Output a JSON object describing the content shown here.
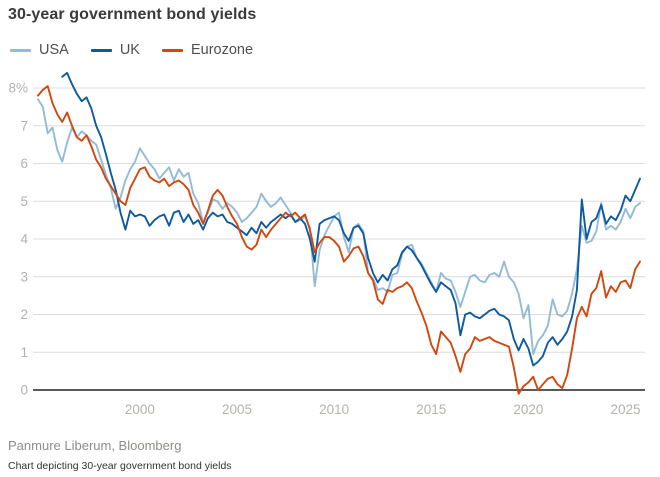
{
  "header": {
    "title": "30-year government bond yields"
  },
  "footer": {
    "source": "Panmure Liberum, Bloomberg",
    "caption": "Chart depicting 30-year government bond yields"
  },
  "colors": {
    "grid": "#dcdcdc",
    "zero_line": "#222222",
    "tick_label": "#b5b2ae"
  },
  "chart_data": {
    "type": "line",
    "title": "30-year government bond yields",
    "xlabel": "",
    "ylabel": "",
    "grid": "horizontal",
    "legend_position": "top-left",
    "x_axis": {
      "range": [
        1994.7,
        2025.8
      ],
      "ticks": [
        2000,
        2005,
        2010,
        2015,
        2020,
        2025
      ]
    },
    "y_axis": {
      "range": [
        -0.3,
        8.6
      ],
      "ticks": [
        0,
        1,
        2,
        3,
        4,
        5,
        6,
        7,
        8
      ],
      "tick_labels": [
        "0",
        "1",
        "2",
        "3",
        "4",
        "5",
        "6",
        "7",
        "8%"
      ],
      "unit": "%"
    },
    "series": [
      {
        "name": "USA",
        "color": "#93bad8",
        "start": 1994.75,
        "step": 0.25,
        "values": [
          7.7,
          7.5,
          6.8,
          6.95,
          6.35,
          6.05,
          6.55,
          6.95,
          6.7,
          6.85,
          6.75,
          6.6,
          6.5,
          6.1,
          5.7,
          5.35,
          4.8,
          5.1,
          5.55,
          5.85,
          6.05,
          6.4,
          6.2,
          6.0,
          5.85,
          5.6,
          5.75,
          5.9,
          5.55,
          5.85,
          5.65,
          5.75,
          5.2,
          4.95,
          4.45,
          4.7,
          5.05,
          5.0,
          4.8,
          4.95,
          4.85,
          4.7,
          4.45,
          4.55,
          4.7,
          4.85,
          5.2,
          5.0,
          4.85,
          4.95,
          5.1,
          4.9,
          4.7,
          4.45,
          4.5,
          4.6,
          4.3,
          2.75,
          3.7,
          4.1,
          4.35,
          4.6,
          4.7,
          4.05,
          3.65,
          4.3,
          4.4,
          4.2,
          3.1,
          2.95,
          2.65,
          2.7,
          2.6,
          3.05,
          3.1,
          3.6,
          3.8,
          3.85,
          3.5,
          3.35,
          3.1,
          2.85,
          2.6,
          3.1,
          2.95,
          2.9,
          2.6,
          2.2,
          2.6,
          3.0,
          3.05,
          2.9,
          2.85,
          3.05,
          3.1,
          3.0,
          3.4,
          3.0,
          2.85,
          2.55,
          1.9,
          2.25,
          0.95,
          1.3,
          1.45,
          1.7,
          2.4,
          2.0,
          1.95,
          2.1,
          2.55,
          3.2,
          4.35,
          3.9,
          3.95,
          4.2,
          4.95,
          4.25,
          4.35,
          4.25,
          4.45,
          4.8,
          4.55,
          4.85,
          4.95
        ]
      },
      {
        "name": "UK",
        "color": "#0f5a9e",
        "start": 1996.0,
        "step": 0.25,
        "values": [
          8.3,
          8.4,
          8.1,
          7.85,
          7.65,
          7.75,
          7.45,
          7.0,
          6.7,
          6.25,
          5.75,
          5.3,
          4.7,
          4.25,
          4.75,
          4.6,
          4.65,
          4.6,
          4.35,
          4.5,
          4.6,
          4.65,
          4.35,
          4.7,
          4.75,
          4.45,
          4.65,
          4.4,
          4.5,
          4.25,
          4.55,
          4.7,
          4.6,
          4.65,
          4.45,
          4.4,
          4.3,
          4.2,
          4.1,
          4.3,
          4.15,
          4.45,
          4.3,
          4.45,
          4.55,
          4.65,
          4.55,
          4.65,
          4.45,
          4.55,
          4.4,
          4.0,
          3.4,
          4.4,
          4.5,
          4.55,
          4.6,
          4.5,
          4.15,
          3.95,
          4.3,
          4.35,
          4.15,
          3.5,
          3.1,
          2.85,
          3.05,
          2.9,
          3.2,
          3.3,
          3.65,
          3.8,
          3.7,
          3.5,
          3.3,
          3.05,
          2.8,
          2.6,
          2.85,
          2.75,
          2.65,
          2.3,
          1.45,
          2.0,
          2.05,
          1.95,
          1.9,
          2.0,
          2.1,
          2.15,
          2.0,
          1.95,
          1.85,
          1.35,
          1.05,
          1.35,
          1.1,
          0.65,
          0.75,
          0.9,
          1.25,
          1.4,
          1.2,
          1.35,
          1.55,
          1.95,
          2.65,
          5.05,
          4.0,
          4.45,
          4.55,
          4.9,
          4.4,
          4.6,
          4.5,
          4.75,
          5.15,
          5.0,
          5.3,
          5.6
        ]
      },
      {
        "name": "Eurozone",
        "color": "#d1480e",
        "start": 1994.75,
        "step": 0.25,
        "values": [
          7.8,
          7.95,
          8.05,
          7.6,
          7.3,
          7.1,
          7.35,
          7.0,
          6.7,
          6.6,
          6.75,
          6.45,
          6.1,
          5.9,
          5.6,
          5.4,
          5.2,
          5.0,
          4.9,
          5.35,
          5.6,
          5.85,
          5.9,
          5.65,
          5.55,
          5.5,
          5.6,
          5.4,
          5.5,
          5.55,
          5.45,
          5.3,
          4.9,
          4.7,
          4.4,
          4.75,
          5.15,
          5.3,
          5.15,
          4.85,
          4.6,
          4.4,
          4.05,
          3.8,
          3.72,
          3.85,
          4.25,
          4.05,
          4.25,
          4.4,
          4.55,
          4.7,
          4.6,
          4.7,
          4.55,
          4.65,
          4.25,
          3.65,
          3.9,
          4.05,
          4.05,
          3.95,
          3.8,
          3.4,
          3.55,
          3.75,
          3.8,
          3.55,
          3.1,
          2.9,
          2.4,
          2.28,
          2.65,
          2.6,
          2.7,
          2.75,
          2.85,
          2.7,
          2.35,
          2.05,
          1.7,
          1.2,
          0.95,
          1.55,
          1.4,
          1.25,
          0.9,
          0.48,
          0.95,
          1.1,
          1.4,
          1.3,
          1.35,
          1.4,
          1.3,
          1.25,
          1.2,
          1.15,
          0.6,
          -0.1,
          0.1,
          0.2,
          0.35,
          0.0,
          0.15,
          0.3,
          0.35,
          0.15,
          0.05,
          0.4,
          1.1,
          1.9,
          2.2,
          1.95,
          2.55,
          2.7,
          3.15,
          2.45,
          2.75,
          2.6,
          2.85,
          2.9,
          2.7,
          3.2,
          3.4
        ]
      }
    ]
  }
}
